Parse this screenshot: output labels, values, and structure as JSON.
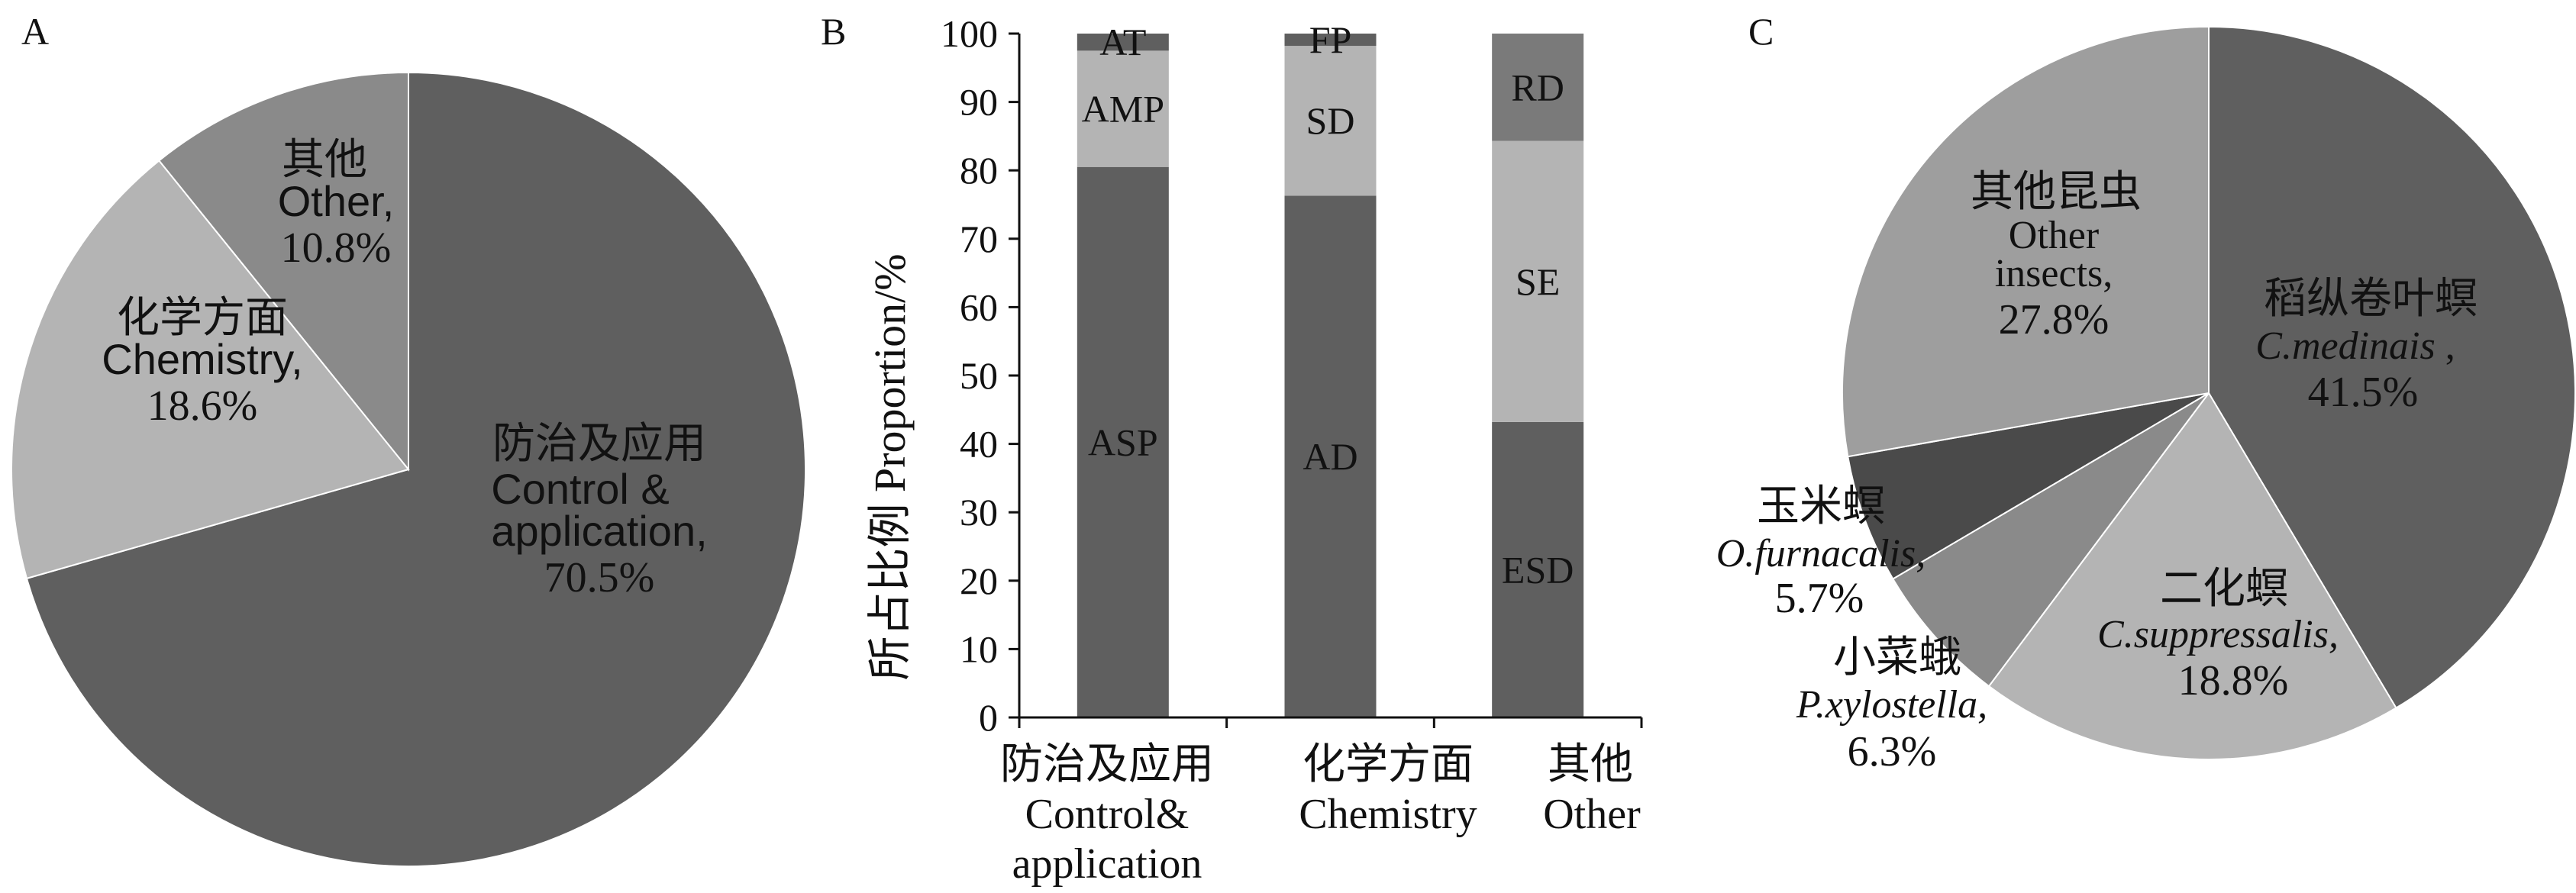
{
  "chart_data": [
    {
      "panel": "A",
      "type": "pie",
      "slices": [
        {
          "name_zh": "防治及应用",
          "name_en1": "Control &",
          "name_en2": "application,",
          "value": 70.5,
          "label_pct": "70.5%",
          "color": "#5f5f5f"
        },
        {
          "name_zh": "化学方面",
          "name_en1": "Chemistry,",
          "name_en2": "",
          "value": 18.6,
          "label_pct": "18.6%",
          "color": "#b4b4b4"
        },
        {
          "name_zh": "其他",
          "name_en1": "Other,",
          "name_en2": "",
          "value": 10.8,
          "label_pct": "10.8%",
          "color": "#8a8a8a"
        }
      ]
    },
    {
      "panel": "B",
      "type": "bar",
      "stacked": true,
      "ylabel": "所占比例  Proportion/%",
      "ylim": [
        0,
        100
      ],
      "yticks": [
        "0",
        "10",
        "20",
        "30",
        "40",
        "50",
        "60",
        "70",
        "80",
        "90",
        "100"
      ],
      "categories": [
        {
          "zh": "防治及应用",
          "en1": "Control&",
          "en2": "application"
        },
        {
          "zh": "化学方面",
          "en1": "Chemistry",
          "en2": ""
        },
        {
          "zh": "其他",
          "en1": "Other",
          "en2": ""
        }
      ],
      "stacks": [
        [
          {
            "label": "ASP",
            "value": 80.5,
            "color": "#5f5f5f"
          },
          {
            "label": "AMP",
            "value": 17.0,
            "color": "#b4b4b4"
          },
          {
            "label": "AT",
            "value": 2.5,
            "color": "#5f5f5f"
          }
        ],
        [
          {
            "label": "AD",
            "value": 76.3,
            "color": "#5f5f5f"
          },
          {
            "label": "SD",
            "value": 21.9,
            "color": "#b4b4b4"
          },
          {
            "label": "FP",
            "value": 1.8,
            "color": "#5f5f5f"
          }
        ],
        [
          {
            "label": "ESD",
            "value": 43.2,
            "color": "#5f5f5f"
          },
          {
            "label": "SE",
            "value": 41.1,
            "color": "#b4b4b4"
          },
          {
            "label": "RD",
            "value": 15.7,
            "color": "#7a7a7a"
          }
        ]
      ]
    },
    {
      "panel": "C",
      "type": "pie",
      "slices": [
        {
          "name_zh": "稻纵卷叶螟",
          "name_sci": "C.medinais",
          "suffix": " ,",
          "value": 41.5,
          "label_pct": "41.5%",
          "color": "#5f5f5f"
        },
        {
          "name_zh": "二化螟",
          "name_sci": "C.suppressalis,",
          "suffix": "",
          "value": 18.8,
          "label_pct": "18.8%",
          "color": "#b4b4b4"
        },
        {
          "name_zh": "小菜蛾",
          "name_sci": "P.xylostella,",
          "suffix": "",
          "value": 6.3,
          "label_pct": "6.3%",
          "color": "#8a8a8a"
        },
        {
          "name_zh": "玉米螟",
          "name_sci": "O.furnacalis,",
          "suffix": "",
          "value": 5.7,
          "label_pct": "5.7%",
          "color": "#4a4a4a"
        },
        {
          "name_zh": "其他昆虫",
          "name_sci": "Other",
          "name_sci2": "insects,",
          "suffix": "",
          "value": 27.8,
          "label_pct": "27.8%",
          "color": "#9e9e9e"
        }
      ]
    }
  ],
  "panels": {
    "a": "A",
    "b": "B",
    "c": "C"
  }
}
